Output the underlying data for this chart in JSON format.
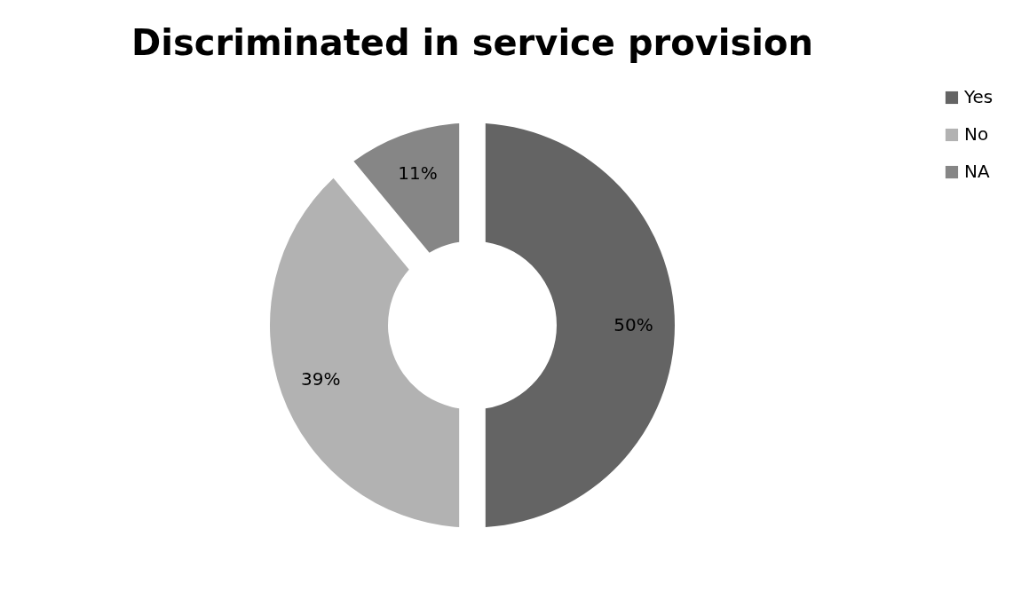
{
  "chart_data": {
    "type": "donut",
    "title": "Discriminated in service provision",
    "categories": [
      "Yes",
      "No",
      "NA"
    ],
    "values": [
      50,
      39,
      11
    ],
    "value_labels": [
      "50%",
      "39%",
      "11%"
    ],
    "colors": [
      "#646464",
      "#b2b2b2",
      "#868686"
    ],
    "legend": "right"
  }
}
